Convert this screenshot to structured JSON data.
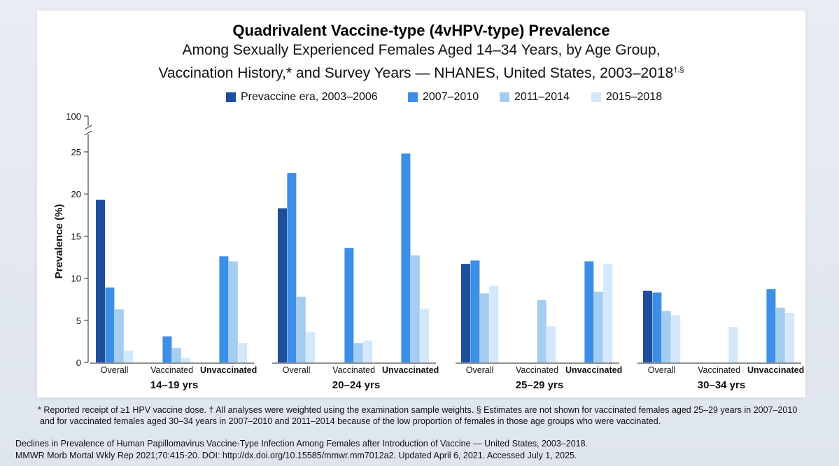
{
  "header": {
    "title": "Quadrivalent Vaccine-type (4vHPV-type) Prevalence",
    "subtitle_line1": "Among Sexually Experienced Females Aged 14–34 Years, by Age Group,",
    "subtitle_line2": "Vaccination History,* and Survey Years — NHANES, United States, 2003–2018",
    "subtitle_marks": "†,§"
  },
  "colors": {
    "series": [
      "#1f4e9c",
      "#3d8ee6",
      "#a5cdf2",
      "#d4e8fb"
    ]
  },
  "chart_data": {
    "type": "bar",
    "ylabel": "Prevalence (%)",
    "ylim": [
      0,
      25
    ],
    "yticks": [
      "0",
      "5",
      "10",
      "15",
      "20",
      "25"
    ],
    "ybreak_label": "100",
    "legend_position": "top",
    "series_names": [
      "Prevaccine era, 2003–2006",
      "2007–2010",
      "2011–2014",
      "2015–2018"
    ],
    "groups": [
      {
        "label": "14–19 yrs",
        "subgroups": [
          {
            "label": "Overall",
            "bold": false,
            "values": [
              19.3,
              8.9,
              6.3,
              1.4
            ]
          },
          {
            "label": "Vaccinated",
            "bold": false,
            "values": [
              null,
              3.1,
              1.7,
              0.5
            ]
          },
          {
            "label": "Unvaccinated",
            "bold": true,
            "values": [
              null,
              12.6,
              12.0,
              2.3
            ]
          }
        ]
      },
      {
        "label": "20–24 yrs",
        "subgroups": [
          {
            "label": "Overall",
            "bold": false,
            "values": [
              18.3,
              22.5,
              7.8,
              3.6
            ]
          },
          {
            "label": "Vaccinated",
            "bold": false,
            "values": [
              null,
              13.6,
              2.3,
              2.6
            ]
          },
          {
            "label": "Unvaccinated",
            "bold": true,
            "values": [
              null,
              24.8,
              12.7,
              6.4
            ]
          }
        ]
      },
      {
        "label": "25–29 yrs",
        "subgroups": [
          {
            "label": "Overall",
            "bold": false,
            "values": [
              11.7,
              12.1,
              8.2,
              9.1
            ]
          },
          {
            "label": "Vaccinated",
            "bold": false,
            "values": [
              null,
              null,
              7.4,
              4.3
            ]
          },
          {
            "label": "Unvaccinated",
            "bold": true,
            "values": [
              null,
              12.0,
              8.4,
              11.7
            ]
          }
        ]
      },
      {
        "label": "30–34 yrs",
        "subgroups": [
          {
            "label": "Overall",
            "bold": false,
            "values": [
              8.5,
              8.3,
              6.1,
              5.6
            ]
          },
          {
            "label": "Vaccinated",
            "bold": false,
            "values": [
              null,
              null,
              null,
              4.2
            ]
          },
          {
            "label": "Unvaccinated",
            "bold": true,
            "values": [
              null,
              8.7,
              6.5,
              5.9
            ]
          }
        ]
      }
    ]
  },
  "footnote": {
    "line1": "* Reported receipt of ≥1 HPV vaccine dose. † All analyses were weighted using the examination sample weights. § Estimates are not shown for vaccinated females aged 25–29 years in 2007–2010",
    "line2": "and for vaccinated females aged 30–34 years in 2007–2010 and 2011–2014 because of the low proportion of females in those age groups who were vaccinated."
  },
  "source": {
    "line1": "Declines in Prevalence of Human Papillomavirus Vaccine-Type Infection Among Females after Introduction of Vaccine — United States, 2003–2018.",
    "line2": "MMWR Morb Mortal Wkly Rep 2021;70:415-20. DOI: http://dx.doi.org/10.15585/mmwr.mm7012a2. Updated April 6, 2021. Accessed July 1, 2025."
  }
}
